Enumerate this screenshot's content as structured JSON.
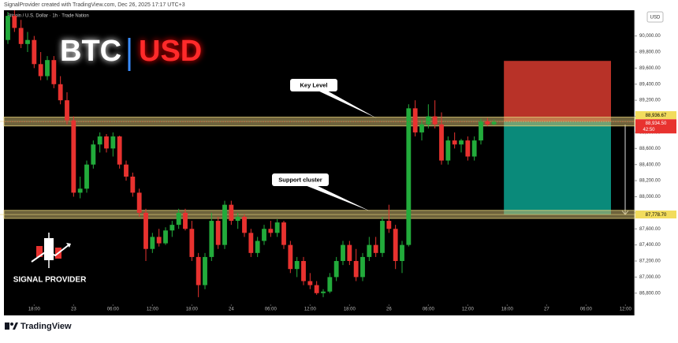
{
  "chart_data": {
    "type": "candlestick",
    "header": "SignalProvider created with TradingView.com, Dec 26, 2025 17:17 UTC+3",
    "symbol": "Bitcoin / U.S. Dollar · 1h · Trade Nation",
    "currency": "USD",
    "title_left": "BTC",
    "title_right": "USD",
    "brand": "SIGNAL PROVIDER",
    "footer": "TradingView",
    "up_color": "#22ab3b",
    "down_color": "#e8322f",
    "xlim": [
      -0.6,
      95.4
    ],
    "xticks": [
      {
        "value": 4,
        "label": "18:00"
      },
      {
        "value": 10,
        "label": "23"
      },
      {
        "value": 16,
        "label": "06:00"
      },
      {
        "value": 22,
        "label": "12:00"
      },
      {
        "value": 28,
        "label": "18:00"
      },
      {
        "value": 34,
        "label": "24"
      },
      {
        "value": 40,
        "label": "06:00"
      },
      {
        "value": 46,
        "label": "12:00"
      },
      {
        "value": 52,
        "label": "18:00"
      },
      {
        "value": 58,
        "label": "26"
      },
      {
        "value": 64,
        "label": "06:00"
      },
      {
        "value": 70,
        "label": "12:00"
      },
      {
        "value": 76,
        "label": "18:00"
      },
      {
        "value": 82,
        "label": "27"
      },
      {
        "value": 88,
        "label": "06:00"
      },
      {
        "value": 94,
        "label": "12:00"
      }
    ],
    "ylim": [
      86690,
      90320
    ],
    "yticks": [
      {
        "value": 86800,
        "label": "86,800.00"
      },
      {
        "value": 87000,
        "label": "87,000.00"
      },
      {
        "value": 87200,
        "label": "87,200.00"
      },
      {
        "value": 87400,
        "label": "87,400.00"
      },
      {
        "value": 87600,
        "label": "87,600.00"
      },
      {
        "value": 87800,
        "label": "87,800.00"
      },
      {
        "value": 88000,
        "label": "88,000.00"
      },
      {
        "value": 88200,
        "label": "88,200.00"
      },
      {
        "value": 88400,
        "label": "88,400.00"
      },
      {
        "value": 88600,
        "label": "88,600.00"
      },
      {
        "value": 88800,
        "label": "88,800.00"
      },
      {
        "value": 89000,
        "label": "89,000.00"
      },
      {
        "value": 89200,
        "label": "89,200.00"
      },
      {
        "value": 89400,
        "label": "89,400.00"
      },
      {
        "value": 89600,
        "label": "89,600.00"
      },
      {
        "value": 89800,
        "label": "89,800.00"
      },
      {
        "value": 90000,
        "label": "90,000.00"
      }
    ],
    "open": [
      89950,
      90250,
      90100,
      89900,
      89950,
      89650,
      89500,
      89700,
      89400,
      89200,
      88950,
      88050,
      88100,
      88400,
      88650,
      88750,
      88600,
      88750,
      88400,
      88250,
      88050,
      87800,
      87350,
      87500,
      87420,
      87580,
      87650,
      87800,
      87600,
      87250,
      86900,
      87250,
      87700,
      87400,
      87900,
      87700,
      87750,
      87550,
      87300,
      87450,
      87600,
      87550,
      87680,
      87400,
      87100,
      87200,
      86950,
      86900,
      86800,
      86820,
      87000,
      87200,
      87400,
      87200,
      87000,
      87250,
      87400,
      87300,
      87700,
      87600,
      87200,
      87400,
      89100,
      88800,
      88900,
      89000,
      88900,
      88450,
      88700,
      88650,
      88700,
      88500,
      88700,
      88940,
      88900
    ],
    "high": [
      90300,
      90320,
      90200,
      90050,
      90000,
      89800,
      89750,
      89750,
      89500,
      89300,
      89000,
      88250,
      88450,
      88700,
      88800,
      88780,
      88800,
      88760,
      88450,
      88300,
      88100,
      87850,
      87550,
      87600,
      87620,
      87700,
      87850,
      87850,
      87700,
      87300,
      87300,
      87800,
      87750,
      87950,
      87950,
      87800,
      87780,
      87600,
      87500,
      87650,
      87700,
      87720,
      87700,
      87450,
      87250,
      87250,
      87050,
      86950,
      86850,
      87050,
      87250,
      87450,
      87450,
      87350,
      87300,
      87500,
      87500,
      87750,
      87900,
      87650,
      87450,
      89150,
      89200,
      88950,
      89150,
      89200,
      89050,
      88750,
      88800,
      88720,
      88750,
      88750,
      88970,
      88980,
      88960
    ],
    "low": [
      89900,
      90050,
      89850,
      89800,
      89600,
      89450,
      89450,
      89350,
      89150,
      88900,
      88000,
      87980,
      88050,
      88350,
      88550,
      88550,
      88500,
      88350,
      88200,
      88000,
      87750,
      87200,
      87300,
      87380,
      87400,
      87500,
      87600,
      87580,
      87200,
      86750,
      86850,
      87200,
      87350,
      87350,
      87650,
      87600,
      87500,
      87250,
      87250,
      87400,
      87500,
      87500,
      87350,
      87050,
      87000,
      86900,
      86850,
      86780,
      86750,
      86800,
      86950,
      87150,
      87150,
      86950,
      86950,
      87200,
      87250,
      87250,
      87550,
      87100,
      87050,
      87380,
      88750,
      88700,
      88850,
      88850,
      88400,
      88400,
      88600,
      88550,
      88450,
      88450,
      88650,
      88880,
      88890
    ],
    "close": [
      90250,
      90100,
      89900,
      89950,
      89650,
      89500,
      89700,
      89400,
      89200,
      88950,
      88050,
      88100,
      88400,
      88650,
      88750,
      88600,
      88750,
      88400,
      88250,
      88050,
      87800,
      87350,
      87500,
      87420,
      87580,
      87650,
      87800,
      87600,
      87250,
      86900,
      87250,
      87700,
      87400,
      87900,
      87700,
      87750,
      87550,
      87300,
      87450,
      87600,
      87550,
      87680,
      87400,
      87100,
      87200,
      86950,
      86900,
      86800,
      86820,
      87000,
      87200,
      87400,
      87200,
      87000,
      87250,
      87400,
      87300,
      87700,
      87600,
      87200,
      87400,
      89100,
      88800,
      88900,
      89000,
      88900,
      88450,
      88700,
      88650,
      88700,
      88500,
      88700,
      88940,
      88900,
      88934.5
    ],
    "current_price": {
      "value": 88934.5,
      "label": "88,934.50",
      "countdown": "42:50"
    },
    "levels": [
      {
        "value": 88936.67,
        "label": "88,936.67",
        "band": [
          88880,
          88990
        ],
        "annotation": "Key Level"
      },
      {
        "value": 87778.7,
        "label": "87,778.70",
        "band": [
          87730,
          87830
        ],
        "annotation": "Support cluster"
      }
    ],
    "position": {
      "start": 75.5,
      "end": 91.8,
      "entry": 88936.67,
      "stop": 89690,
      "target": 87778.7
    }
  }
}
